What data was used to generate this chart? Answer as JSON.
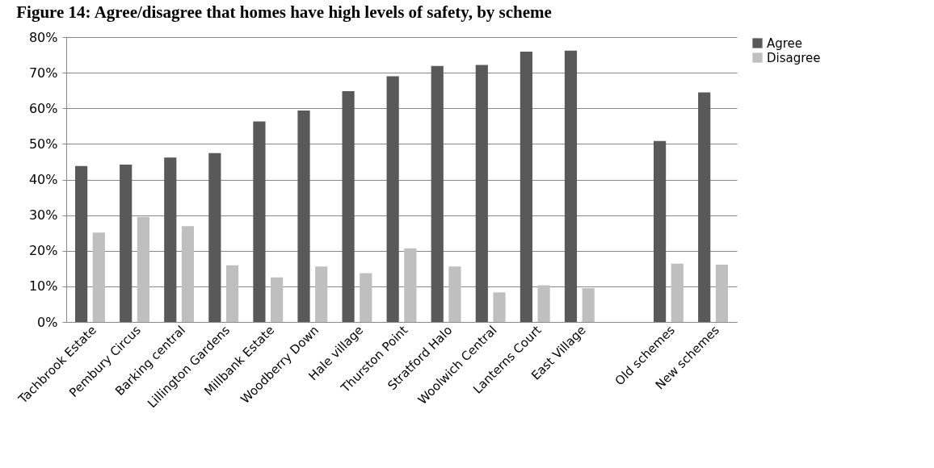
{
  "chart_data": {
    "type": "bar",
    "title": "Figure 14: Agree/disagree that homes have high levels of safety, by scheme",
    "categories": [
      "Tachbrook Estate",
      "Pembury Circus",
      "Barking central",
      "Lillington Gardens",
      "Millbank Estate",
      "Woodberry Down",
      "Hale village",
      "Thurston Point",
      "Stratford Halo",
      "Woolwich Central",
      "Lanterns Court",
      "East Village",
      null,
      "Old schemes",
      "New schemes"
    ],
    "series": [
      {
        "name": "Agree",
        "color": "#595959",
        "values": [
          43.8,
          44.2,
          46.2,
          47.4,
          56.3,
          59.4,
          64.8,
          69.0,
          71.9,
          72.2,
          75.9,
          76.2,
          null,
          50.8,
          64.5
        ]
      },
      {
        "name": "Disagree",
        "color": "#bfbfbf",
        "values": [
          25.1,
          29.5,
          26.9,
          15.9,
          12.5,
          15.6,
          13.7,
          20.7,
          15.6,
          8.3,
          10.3,
          9.5,
          null,
          16.4,
          16.1
        ]
      }
    ],
    "ylim": [
      0,
      80
    ],
    "yticks": [
      {
        "value": 0,
        "label": "0%"
      },
      {
        "value": 10,
        "label": "10%"
      },
      {
        "value": 20,
        "label": "20%"
      },
      {
        "value": 30,
        "label": "30%"
      },
      {
        "value": 40,
        "label": "40%"
      },
      {
        "value": 50,
        "label": "50%"
      },
      {
        "value": 60,
        "label": "60%"
      },
      {
        "value": 70,
        "label": "70%"
      },
      {
        "value": 80,
        "label": "80%"
      }
    ],
    "grid": "y",
    "legend": "right"
  }
}
